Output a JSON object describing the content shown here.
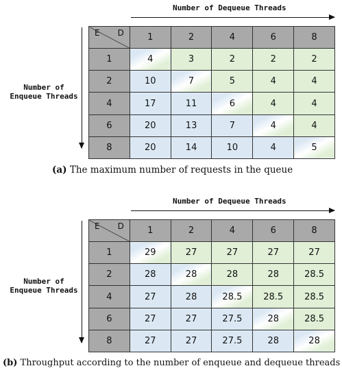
{
  "panels": [
    {
      "col_axis_label": "Number of Dequeue Threads",
      "row_axis_label": [
        "Number of",
        "Enqueue Threads"
      ],
      "corner_row": "E",
      "corner_col": "D",
      "col_headers": [
        "1",
        "2",
        "4",
        "6",
        "8"
      ],
      "row_headers": [
        "1",
        "2",
        "4",
        "6",
        "8"
      ],
      "values": [
        [
          "4",
          "3",
          "2",
          "2",
          "2"
        ],
        [
          "10",
          "7",
          "5",
          "4",
          "4"
        ],
        [
          "17",
          "11",
          "6",
          "4",
          "4"
        ],
        [
          "20",
          "13",
          "7",
          "4",
          "4"
        ],
        [
          "20",
          "14",
          "10",
          "4",
          "5"
        ]
      ],
      "caption_tag": "(a)",
      "caption_text": "The maximum number of requests in the queue"
    },
    {
      "col_axis_label": "Number of Dequeue Threads",
      "row_axis_label": [
        "Number of",
        "Enqueue Threads"
      ],
      "corner_row": "E",
      "corner_col": "D",
      "col_headers": [
        "1",
        "2",
        "4",
        "6",
        "8"
      ],
      "row_headers": [
        "1",
        "2",
        "4",
        "6",
        "8"
      ],
      "values": [
        [
          "29",
          "27",
          "27",
          "27",
          "27"
        ],
        [
          "28",
          "28",
          "28",
          "28",
          "28.5"
        ],
        [
          "27",
          "28",
          "28.5",
          "28.5",
          "28.5"
        ],
        [
          "27",
          "27",
          "27.5",
          "28",
          "28.5"
        ],
        [
          "27",
          "27",
          "27.5",
          "28",
          "28"
        ]
      ],
      "caption_tag": "(b)",
      "caption_text": "Throughput according to the number of enqueue and dequeue threads"
    }
  ],
  "colors": {
    "header_gray": "#a9a9a9",
    "upper_green": "#e0efd6",
    "lower_blue": "#dbe8f4"
  }
}
